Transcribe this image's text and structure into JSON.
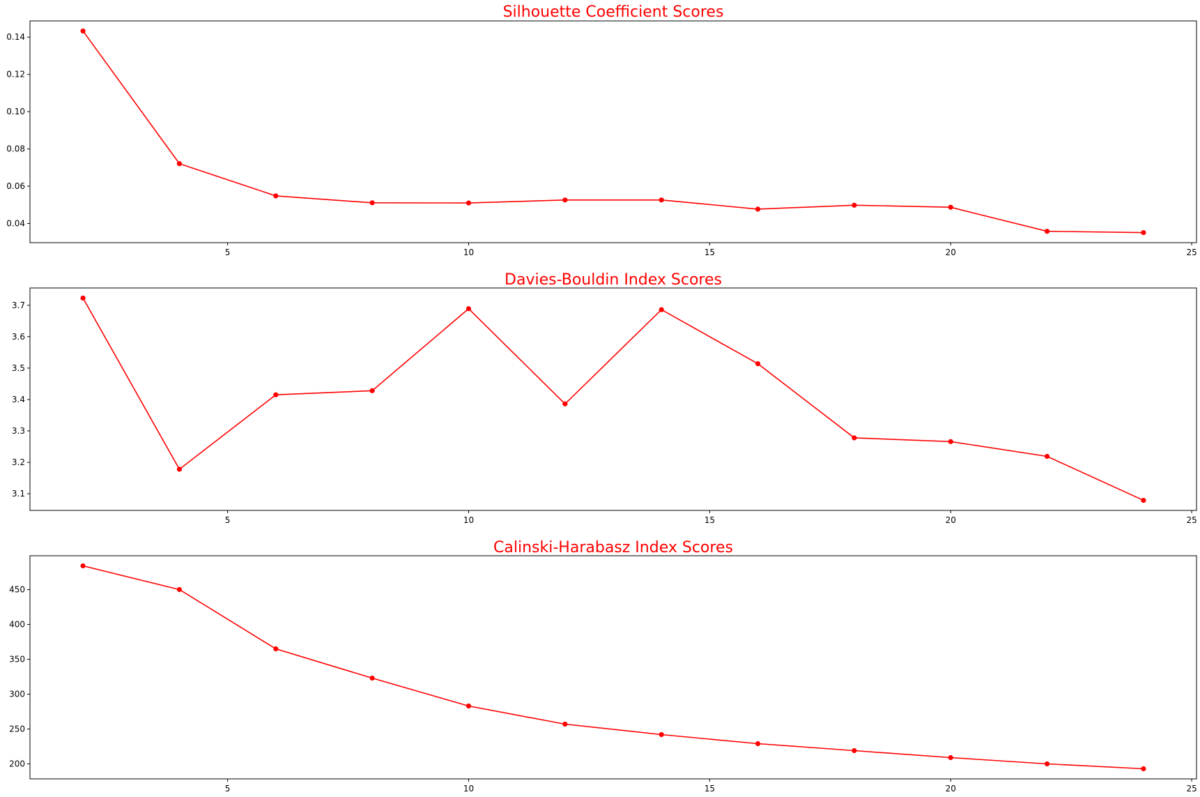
{
  "chart_data": [
    {
      "type": "line",
      "title": "Silhouette Coefficient Scores",
      "xlabel": "",
      "ylabel": "",
      "x": [
        2,
        4,
        6,
        8,
        10,
        12,
        14,
        16,
        18,
        20,
        22,
        24
      ],
      "series": [
        {
          "values": [
            0.1433,
            0.0721,
            0.0548,
            0.0511,
            0.051,
            0.0526,
            0.0526,
            0.0477,
            0.0498,
            0.0487,
            0.0358,
            0.0351
          ]
        }
      ],
      "xlim": [
        0.9,
        25.1
      ],
      "ylim": [
        0.0297,
        0.1487
      ],
      "xticks": [
        5,
        10,
        15,
        20,
        25
      ],
      "xtick_labels": [
        "5",
        "10",
        "15",
        "20",
        "25"
      ],
      "yticks": [
        0.04,
        0.06,
        0.08,
        0.1,
        0.12,
        0.14
      ],
      "ytick_labels": [
        "0.04",
        "0.06",
        "0.08",
        "0.10",
        "0.12",
        "0.14"
      ],
      "grid": false,
      "color": "#ff0000",
      "marker": "circle"
    },
    {
      "type": "line",
      "title": "Davies-Bouldin Index Scores",
      "xlabel": "",
      "ylabel": "",
      "x": [
        2,
        4,
        6,
        8,
        10,
        12,
        14,
        16,
        18,
        20,
        22,
        24
      ],
      "series": [
        {
          "values": [
            3.723,
            3.178,
            3.415,
            3.428,
            3.689,
            3.386,
            3.686,
            3.514,
            3.278,
            3.266,
            3.219,
            3.079
          ]
        }
      ],
      "xlim": [
        0.9,
        25.1
      ],
      "ylim": [
        3.047,
        3.755
      ],
      "xticks": [
        5,
        10,
        15,
        20,
        25
      ],
      "xtick_labels": [
        "5",
        "10",
        "15",
        "20",
        "25"
      ],
      "yticks": [
        3.1,
        3.2,
        3.3,
        3.4,
        3.5,
        3.6,
        3.7
      ],
      "ytick_labels": [
        "3.1",
        "3.2",
        "3.3",
        "3.4",
        "3.5",
        "3.6",
        "3.7"
      ],
      "grid": false,
      "color": "#ff0000",
      "marker": "circle"
    },
    {
      "type": "line",
      "title": "Calinski-Harabasz Index Scores",
      "xlabel": "",
      "ylabel": "",
      "x": [
        2,
        4,
        6,
        8,
        10,
        12,
        14,
        16,
        18,
        20,
        22,
        24
      ],
      "series": [
        {
          "values": [
            484,
            450,
            365,
            323,
            283,
            257,
            242,
            229,
            219,
            209,
            200,
            193
          ]
        }
      ],
      "xlim": [
        0.9,
        25.1
      ],
      "ylim": [
        178.5,
        498.5
      ],
      "xticks": [
        5,
        10,
        15,
        20,
        25
      ],
      "xtick_labels": [
        "5",
        "10",
        "15",
        "20",
        "25"
      ],
      "yticks": [
        200,
        250,
        300,
        350,
        400,
        450
      ],
      "ytick_labels": [
        "200",
        "250",
        "300",
        "350",
        "400",
        "450"
      ],
      "grid": false,
      "color": "#ff0000",
      "marker": "circle"
    }
  ]
}
